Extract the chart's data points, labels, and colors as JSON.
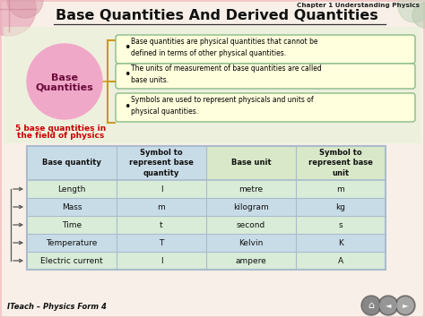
{
  "title": "Base Quantities And Derived Quantities",
  "chapter_text": "Chapter 1 Understanding Physics",
  "footer_text": "ITeach – Physics Form 4",
  "bg_color": "#f2c8c8",
  "bg_inner_color": "#f5e8e0",
  "circle_color": "#f0a8c8",
  "circle_text_line1": "Base",
  "circle_text_line2": "Quantities",
  "red_text_line1": "5 base quantities in",
  "red_text_line2": "the field of physics",
  "bullets": [
    "Base quantities are physical quantities that cannot be\ndefined in terms of other physical quantities.",
    "The units of measurement of base quantities are called\nbase units.",
    "Symbols are used to represent physicals and units of\nphysical quantities."
  ],
  "bullet_box_color": "#ffffdd",
  "bullet_box_border": "#88bb88",
  "table_header_bg1": "#c8dce8",
  "table_header_bg2": "#d8e8c8",
  "table_row_bg_a": "#d8ecd8",
  "table_row_bg_b": "#c8dce8",
  "table_headers": [
    "Base quantity",
    "Symbol to\nrepresent base\nquantity",
    "Base unit",
    "Symbol to\nrepresent base\nunit"
  ],
  "table_data": [
    [
      "Length",
      "l",
      "metre",
      "m"
    ],
    [
      "Mass",
      "m",
      "kilogram",
      "kg"
    ],
    [
      "Time",
      "t",
      "second",
      "s"
    ],
    [
      "Temperature",
      "T",
      "Kelvin",
      "K"
    ],
    [
      "Electric current",
      "I",
      "ampere",
      "A"
    ]
  ],
  "table_border": "#aabbcc",
  "arrow_color": "#555555",
  "brace_color": "#cc9922",
  "deco_circle_colors": [
    "#e8a0b0",
    "#d89098",
    "#c8d0c8",
    "#b8c8b8"
  ],
  "nav_btn_colors": [
    "#888888",
    "#999999",
    "#aaaaaa"
  ]
}
